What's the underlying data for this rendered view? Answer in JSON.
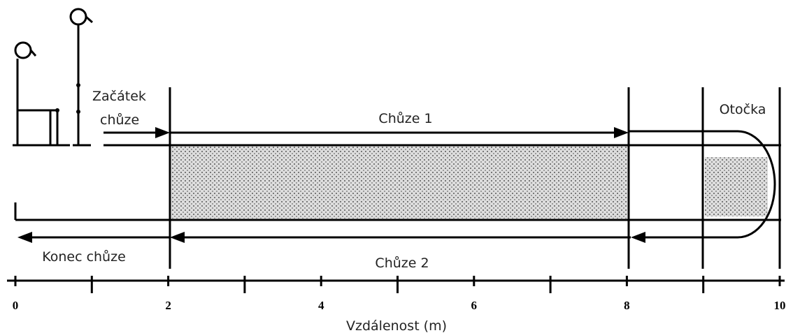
{
  "labels": {
    "start": [
      "Začátek",
      "chůze"
    ],
    "walk1": "Chůze 1",
    "turn": "Otočka",
    "end": "Konec chůze",
    "walk2": "Chůze 2"
  },
  "axis": {
    "label": "Vzdálenost (m)",
    "ticks": [
      0,
      2,
      4,
      6,
      8,
      10
    ]
  }
}
